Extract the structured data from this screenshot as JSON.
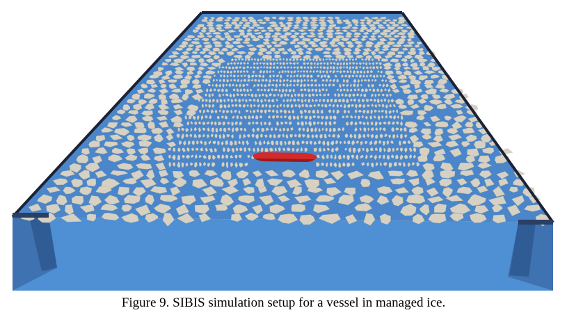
{
  "figure": {
    "caption": "Figure 9. SIBIS simulation setup for a vessel in managed ice.",
    "colors": {
      "water": "#4f8fd3",
      "water_deep": "#4682c8",
      "ice": "#d6d1c3",
      "ice_edge": "#c3bead",
      "vessel": "#d42a2a",
      "vessel_dark": "#9a1a1a",
      "tank_wall": "#2b3e63",
      "tank_rim": "#1c2235",
      "inner_wall": "#3e6ea8"
    }
  }
}
